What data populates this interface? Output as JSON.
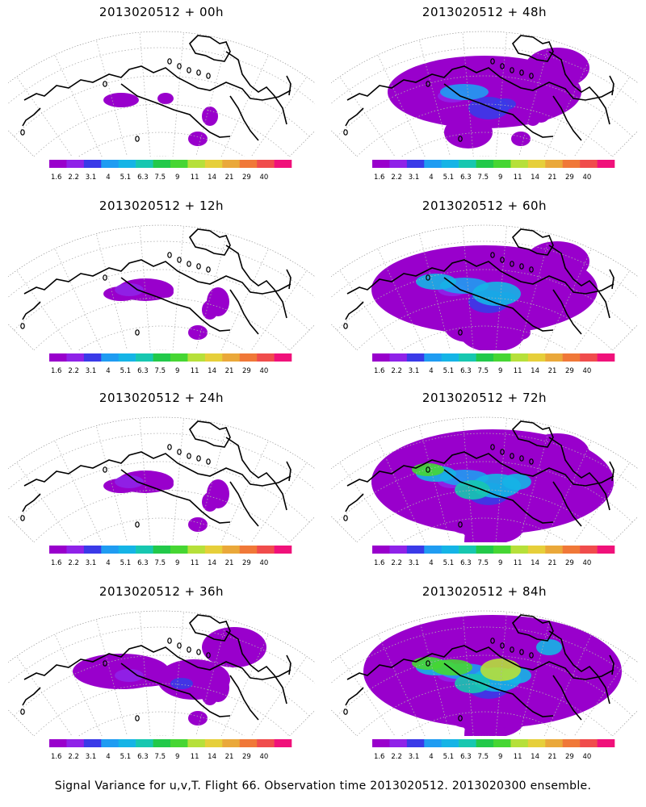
{
  "colors": {
    "scale": [
      "#9900cc",
      "#8f22e8",
      "#3a3ae8",
      "#1f9cf2",
      "#15b4e6",
      "#17c7b0",
      "#22c94a",
      "#46d633",
      "#b6e03a",
      "#e6cf3a",
      "#eaa83a",
      "#f07838",
      "#f04c4c",
      "#f0117a"
    ],
    "coast": "#000000",
    "grid": "#b0b0b0"
  },
  "colorbar": {
    "ticks": [
      "1.6",
      "2.2",
      "3.1",
      "4",
      "5.1",
      "6.3",
      "7.5",
      "9",
      "11",
      "14",
      "21",
      "29",
      "40"
    ]
  },
  "panels": [
    {
      "title": "2013020512 + 00h",
      "level": 0
    },
    {
      "title": "2013020512 + 48h",
      "level": 3
    },
    {
      "title": "2013020512 + 12h",
      "level": 1
    },
    {
      "title": "2013020512 + 60h",
      "level": 4
    },
    {
      "title": "2013020512 + 24h",
      "level": 1
    },
    {
      "title": "2013020512 + 72h",
      "level": 5
    },
    {
      "title": "2013020512 + 36h",
      "level": 2
    },
    {
      "title": "2013020512 + 84h",
      "level": 6
    }
  ],
  "footer": "Signal Variance for u,v,T. Flight 66. Observation time 2013020512. 2013020300 ensemble."
}
